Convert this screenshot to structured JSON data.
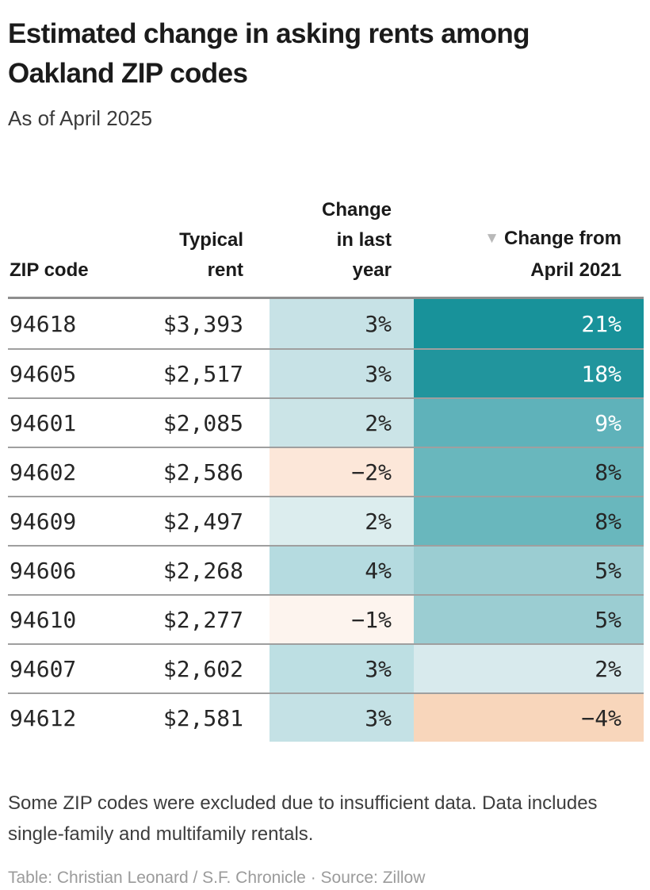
{
  "header": {
    "title": "Estimated change in asking rents among Oakland ZIP codes",
    "subtitle": "As of April 2025"
  },
  "table": {
    "sort_icon": "▼",
    "columns": [
      {
        "id": "zip",
        "label": "ZIP code"
      },
      {
        "id": "rent",
        "label": "Typical rent"
      },
      {
        "id": "yoy",
        "label": "Change in last year"
      },
      {
        "id": "since_2021",
        "label": "Change from April 2021",
        "sorted": "descending"
      }
    ],
    "rows": [
      {
        "zip": "94618",
        "rent": "$3,393",
        "yoy": {
          "text": "3%",
          "bg": "#c7e2e6",
          "fg": "#262626"
        },
        "since_2021": {
          "text": "21%",
          "bg": "#18929a",
          "fg": "#ffffff"
        }
      },
      {
        "zip": "94605",
        "rent": "$2,517",
        "yoy": {
          "text": "3%",
          "bg": "#c7e2e6",
          "fg": "#262626"
        },
        "since_2021": {
          "text": "18%",
          "bg": "#21959d",
          "fg": "#ffffff"
        }
      },
      {
        "zip": "94601",
        "rent": "$2,085",
        "yoy": {
          "text": "2%",
          "bg": "#cbe4e7",
          "fg": "#262626"
        },
        "since_2021": {
          "text": "9%",
          "bg": "#5fb2ba",
          "fg": "#ffffff"
        }
      },
      {
        "zip": "94602",
        "rent": "$2,586",
        "yoy": {
          "text": "−2%",
          "bg": "#fce7d9",
          "fg": "#262626"
        },
        "since_2021": {
          "text": "8%",
          "bg": "#69b7bd",
          "fg": "#262626"
        }
      },
      {
        "zip": "94609",
        "rent": "$2,497",
        "yoy": {
          "text": "2%",
          "bg": "#dcedee",
          "fg": "#262626"
        },
        "since_2021": {
          "text": "8%",
          "bg": "#69b7bd",
          "fg": "#262626"
        }
      },
      {
        "zip": "94606",
        "rent": "$2,268",
        "yoy": {
          "text": "4%",
          "bg": "#b5dbe0",
          "fg": "#262626"
        },
        "since_2021": {
          "text": "5%",
          "bg": "#9bcdd2",
          "fg": "#262626"
        }
      },
      {
        "zip": "94610",
        "rent": "$2,277",
        "yoy": {
          "text": "−1%",
          "bg": "#fdf4ee",
          "fg": "#262626"
        },
        "since_2021": {
          "text": "5%",
          "bg": "#9bcdd2",
          "fg": "#262626"
        }
      },
      {
        "zip": "94607",
        "rent": "$2,602",
        "yoy": {
          "text": "3%",
          "bg": "#bddfe3",
          "fg": "#262626"
        },
        "since_2021": {
          "text": "2%",
          "bg": "#d8eaed",
          "fg": "#262626"
        }
      },
      {
        "zip": "94612",
        "rent": "$2,581",
        "yoy": {
          "text": "3%",
          "bg": "#c4e1e5",
          "fg": "#262626"
        },
        "since_2021": {
          "text": "−4%",
          "bg": "#f8d6bb",
          "fg": "#262626"
        }
      }
    ]
  },
  "footer": {
    "notes": "Some ZIP codes were excluded due to insufficient data. Data includes single-family and multifamily rentals.",
    "credit": "Table: Christian Leonard / S.F. Chronicle · Source: Zillow"
  },
  "chart_data": {
    "type": "table",
    "title": "Estimated change in asking rents among Oakland ZIP codes",
    "subtitle": "As of April 2025",
    "columns": [
      "ZIP code",
      "Typical rent",
      "Change in last year",
      "Change from April 2021"
    ],
    "sorted_by": "Change from April 2021, descending",
    "units": {
      "Typical rent": "USD",
      "Change in last year": "percent",
      "Change from April 2021": "percent"
    },
    "rows": [
      {
        "zip": "94618",
        "typical_rent": 3393,
        "change_last_year_pct": 3,
        "change_from_april_2021_pct": 21
      },
      {
        "zip": "94605",
        "typical_rent": 2517,
        "change_last_year_pct": 3,
        "change_from_april_2021_pct": 18
      },
      {
        "zip": "94601",
        "typical_rent": 2085,
        "change_last_year_pct": 2,
        "change_from_april_2021_pct": 9
      },
      {
        "zip": "94602",
        "typical_rent": 2586,
        "change_last_year_pct": -2,
        "change_from_april_2021_pct": 8
      },
      {
        "zip": "94609",
        "typical_rent": 2497,
        "change_last_year_pct": 2,
        "change_from_april_2021_pct": 8
      },
      {
        "zip": "94606",
        "typical_rent": 2268,
        "change_last_year_pct": 4,
        "change_from_april_2021_pct": 5
      },
      {
        "zip": "94610",
        "typical_rent": 2277,
        "change_last_year_pct": -1,
        "change_from_april_2021_pct": 5
      },
      {
        "zip": "94607",
        "typical_rent": 2602,
        "change_last_year_pct": 3,
        "change_from_april_2021_pct": 2
      },
      {
        "zip": "94612",
        "typical_rent": 2581,
        "change_last_year_pct": 3,
        "change_from_april_2021_pct": -4
      }
    ],
    "heatmap": true,
    "heatmap_colors": {
      "positive_high": "#18929a",
      "positive_low": "#d8eaed",
      "negative": "#f8d6bb"
    }
  }
}
